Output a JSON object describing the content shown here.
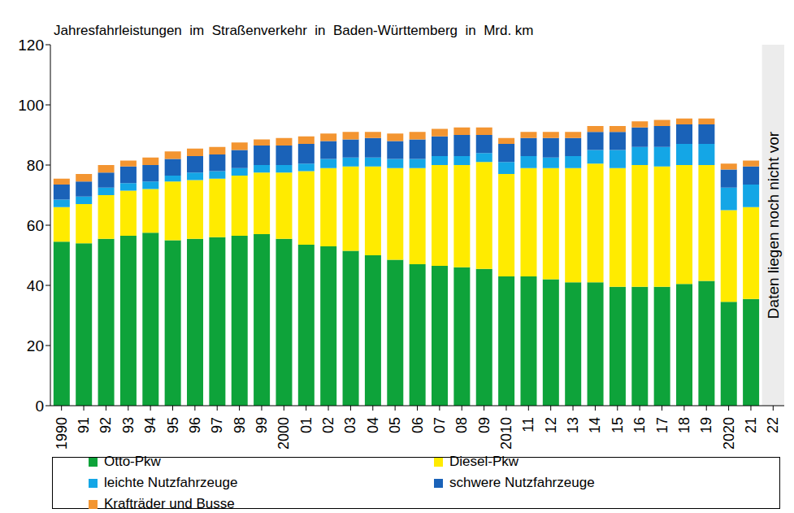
{
  "chart_data": {
    "type": "bar",
    "title": "Jahresfahrleistungen  im  Straßenverkehr  in  Baden-Württemberg  in  Mrd. km",
    "stacked": true,
    "grid": false,
    "categories": [
      "1990",
      "91",
      "92",
      "93",
      "94",
      "95",
      "96",
      "97",
      "98",
      "99",
      "2000",
      "01",
      "02",
      "03",
      "04",
      "05",
      "06",
      "07",
      "08",
      "09",
      "2010",
      "11",
      "12",
      "13",
      "14",
      "15",
      "16",
      "17",
      "18",
      "19",
      "2020",
      "21",
      "22"
    ],
    "ylim": [
      0,
      120
    ],
    "yticks": [
      0,
      20,
      40,
      60,
      80,
      100,
      120
    ],
    "annotation": {
      "text": "Daten liegen noch nicht vor",
      "category": "22"
    },
    "series": [
      {
        "name": "Otto-Pkw",
        "color": "#0ea33a",
        "values": [
          54.5,
          54,
          55.5,
          56.5,
          57.5,
          55,
          55.5,
          56,
          56.5,
          57,
          55.5,
          53.5,
          53,
          51.5,
          50,
          48.5,
          47,
          46.5,
          46,
          45.5,
          43,
          43,
          42,
          41,
          41,
          39.5,
          39.5,
          39.5,
          40.5,
          41.5,
          34.5,
          35.5,
          null
        ]
      },
      {
        "name": "Diesel-Pkw",
        "color": "#ffeb00",
        "values": [
          11.5,
          13,
          14.5,
          15,
          14.5,
          19.5,
          19.5,
          19.5,
          20,
          20.5,
          22,
          24.5,
          26,
          28,
          29.5,
          30.5,
          32,
          33.5,
          34,
          35.5,
          34,
          36,
          37,
          38,
          39.5,
          39.5,
          40.5,
          40,
          39.5,
          38.5,
          30.5,
          30.5,
          null
        ]
      },
      {
        "name": "leichte Nutzfahrzeuge",
        "color": "#14a6e6",
        "values": [
          2.5,
          2.5,
          2.5,
          2.5,
          2.5,
          2,
          2.5,
          2.5,
          2.5,
          2.5,
          2.5,
          2.5,
          3,
          3,
          3,
          3,
          3,
          3,
          3,
          3,
          4,
          4,
          3.5,
          4,
          4.5,
          6,
          6,
          6.5,
          7,
          7,
          7.5,
          7.5,
          null
        ]
      },
      {
        "name": "schwere Nutzfahrzeuge",
        "color": "#1a62b8",
        "values": [
          5,
          5,
          5,
          5.5,
          5.5,
          5.5,
          5.5,
          5.5,
          6,
          6.5,
          6.5,
          6.5,
          6,
          6,
          6.5,
          6,
          6.5,
          6.5,
          7,
          6,
          6,
          6,
          6.5,
          6,
          6,
          6,
          6.5,
          7,
          6.5,
          6.5,
          6,
          6,
          null
        ]
      },
      {
        "name": "Krafträder und Busse",
        "color": "#f39531",
        "values": [
          2,
          2.5,
          2.5,
          2,
          2.5,
          2.5,
          2.5,
          2.5,
          2.5,
          2,
          2.5,
          2.5,
          2.5,
          2.5,
          2,
          2.5,
          2.5,
          2.5,
          2.5,
          2.5,
          2,
          2,
          2,
          2,
          2,
          2,
          2,
          2,
          2,
          2,
          2,
          2,
          null
        ]
      }
    ]
  }
}
